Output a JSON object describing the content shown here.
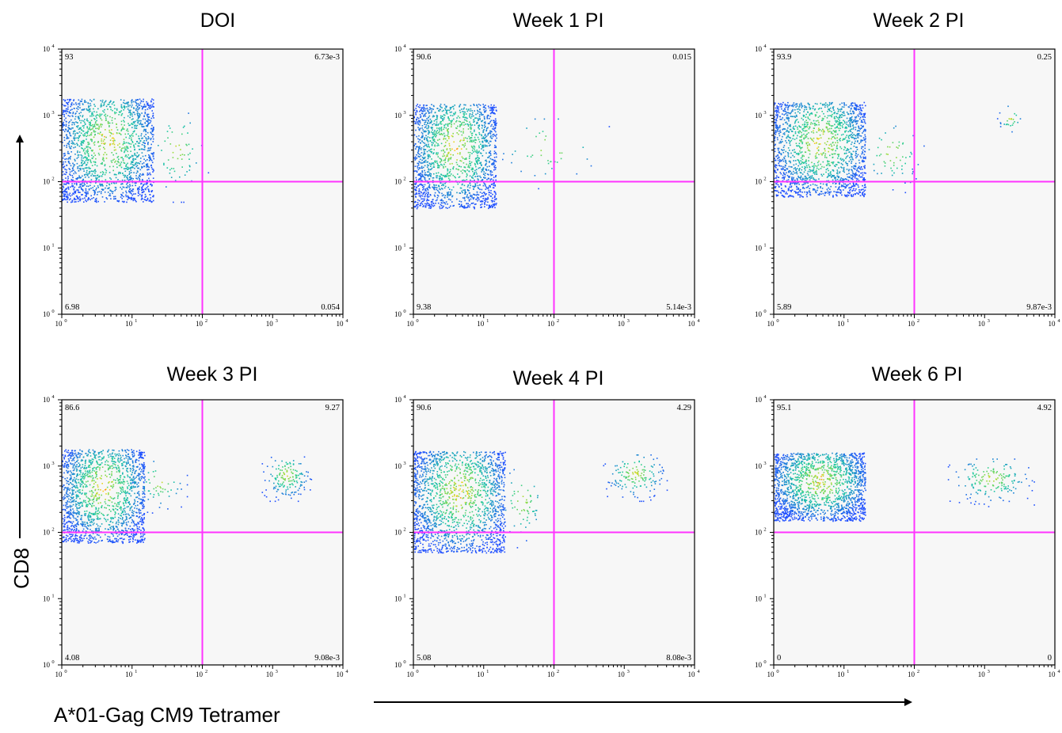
{
  "colors": {
    "plot_background": "#f7f7f7",
    "gate_lines": "#ff33ff",
    "density_low": "#1f4fff",
    "density_mid": "#19c9a0",
    "density_high": "#ffd21a",
    "density_peak": "#ff3a1a"
  },
  "axes": {
    "x_title": "A*01-Gag CM9 Tetramer",
    "y_title": "CD8",
    "x_scale": "log",
    "y_scale": "log",
    "tick_base": "10",
    "tick_exponents": [
      "0",
      "1",
      "2",
      "3",
      "4"
    ]
  },
  "chart_data": [
    {
      "type": "scatter",
      "title": "DOI",
      "xlim": [
        1,
        10000
      ],
      "ylim": [
        1,
        10000
      ],
      "gate": {
        "x": 100,
        "y": 100
      },
      "quadrants": {
        "upper_left": "93",
        "upper_right": "6.73e-3",
        "lower_left": "6.98",
        "lower_right": "0.054"
      },
      "clusters": [
        {
          "x": [
            1,
            20
          ],
          "y": [
            50,
            1800
          ],
          "count": 1700
        },
        {
          "x": [
            15,
            120
          ],
          "y": [
            50,
            1100
          ],
          "count": 60
        }
      ]
    },
    {
      "type": "scatter",
      "title": "Week 1 PI",
      "xlim": [
        1,
        10000
      ],
      "ylim": [
        1,
        10000
      ],
      "gate": {
        "x": 100,
        "y": 100
      },
      "quadrants": {
        "upper_left": "90.6",
        "upper_right": "0.015",
        "lower_left": "9.38",
        "lower_right": "5.14e-3"
      },
      "clusters": [
        {
          "x": [
            1,
            15
          ],
          "y": [
            40,
            1500
          ],
          "count": 1700
        },
        {
          "x": [
            12,
            600
          ],
          "y": [
            80,
            900
          ],
          "count": 40
        }
      ]
    },
    {
      "type": "scatter",
      "title": "Week 2 PI",
      "xlim": [
        1,
        10000
      ],
      "ylim": [
        1,
        10000
      ],
      "gate": {
        "x": 100,
        "y": 100
      },
      "quadrants": {
        "upper_left": "93.9",
        "upper_right": "0.25",
        "lower_left": "5.89",
        "lower_right": "9.87e-3"
      },
      "clusters": [
        {
          "x": [
            1,
            20
          ],
          "y": [
            60,
            1600
          ],
          "count": 1700
        },
        {
          "x": [
            15,
            150
          ],
          "y": [
            70,
            700
          ],
          "count": 60
        },
        {
          "x": [
            1500,
            3500
          ],
          "y": [
            500,
            1400
          ],
          "count": 25
        }
      ]
    },
    {
      "type": "scatter",
      "title": "Week 3 PI",
      "xlim": [
        1,
        10000
      ],
      "ylim": [
        1,
        10000
      ],
      "gate": {
        "x": 100,
        "y": 100
      },
      "quadrants": {
        "upper_left": "86.6",
        "upper_right": "9.27",
        "lower_left": "4.08",
        "lower_right": "9.08e-3"
      },
      "clusters": [
        {
          "x": [
            1,
            15
          ],
          "y": [
            70,
            1800
          ],
          "count": 1600
        },
        {
          "x": [
            10,
            60
          ],
          "y": [
            200,
            1200
          ],
          "count": 50
        },
        {
          "x": [
            700,
            3500
          ],
          "y": [
            300,
            1400
          ],
          "count": 160
        }
      ]
    },
    {
      "type": "scatter",
      "title": "Week 4 PI",
      "xlim": [
        1,
        10000
      ],
      "ylim": [
        1,
        10000
      ],
      "gate": {
        "x": 100,
        "y": 100
      },
      "quadrants": {
        "upper_left": "90.6",
        "upper_right": "4.29",
        "lower_left": "5.08",
        "lower_right": "8.08e-3"
      },
      "clusters": [
        {
          "x": [
            1,
            20
          ],
          "y": [
            50,
            1700
          ],
          "count": 1700
        },
        {
          "x": [
            15,
            80
          ],
          "y": [
            60,
            900
          ],
          "count": 60
        },
        {
          "x": [
            500,
            4000
          ],
          "y": [
            300,
            1500
          ],
          "count": 150
        }
      ]
    },
    {
      "type": "scatter",
      "title": "Week 6 PI",
      "xlim": [
        1,
        10000
      ],
      "ylim": [
        1,
        10000
      ],
      "gate": {
        "x": 100,
        "y": 100
      },
      "quadrants": {
        "upper_left": "95.1",
        "upper_right": "4.92",
        "lower_left": "0",
        "lower_right": "0"
      },
      "clusters": [
        {
          "x": [
            1,
            20
          ],
          "y": [
            150,
            1600
          ],
          "count": 1700
        },
        {
          "x": [
            300,
            5000
          ],
          "y": [
            250,
            1300
          ],
          "count": 170
        }
      ]
    }
  ]
}
